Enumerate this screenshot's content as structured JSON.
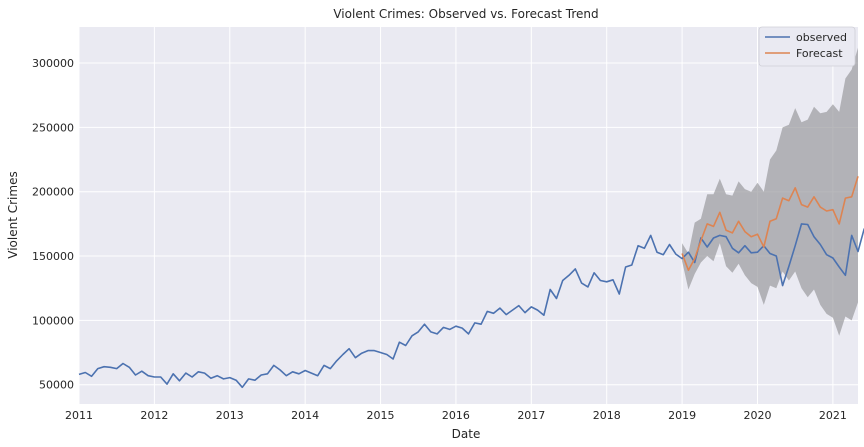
{
  "chart_data": {
    "type": "line",
    "title": "Violent Crimes: Observed vs. Forecast Trend",
    "xlabel": "Date",
    "ylabel": "Violent Crimes",
    "xlim": [
      "2011-01",
      "2021-05"
    ],
    "ylim": [
      35000,
      328000
    ],
    "grid": true,
    "legend_position": "top-right",
    "colors": {
      "observed": "#4c72b0",
      "forecast": "#dd8452",
      "band": "#9a9a9e",
      "background": "#eaeaf2",
      "grid": "#ffffff"
    },
    "x_ticks": [
      "2011",
      "2012",
      "2013",
      "2014",
      "2015",
      "2016",
      "2017",
      "2018",
      "2019",
      "2020",
      "2021"
    ],
    "y_ticks": [
      50000,
      100000,
      150000,
      200000,
      250000,
      300000
    ],
    "y_tick_labels": [
      "50000",
      "100000",
      "150000",
      "200000",
      "250000",
      "300000"
    ],
    "series": [
      {
        "name": "observed",
        "start": "2011-01",
        "values": [
          58000,
          59500,
          56500,
          62500,
          64000,
          63500,
          62500,
          66500,
          63500,
          57500,
          60500,
          57000,
          56000,
          56000,
          50500,
          58500,
          53000,
          59000,
          56000,
          60000,
          59000,
          55000,
          57000,
          54500,
          55500,
          53500,
          48000,
          54500,
          53500,
          57500,
          58500,
          65000,
          61500,
          57000,
          60000,
          58500,
          61000,
          59000,
          57000,
          65000,
          62500,
          68500,
          73500,
          78000,
          71000,
          74500,
          76500,
          76500,
          75000,
          73500,
          70000,
          83000,
          80500,
          88000,
          91000,
          97000,
          91000,
          89500,
          94500,
          93000,
          95500,
          94000,
          89500,
          98000,
          97000,
          107000,
          105500,
          109500,
          104500,
          108000,
          111500,
          106000,
          110500,
          108000,
          104000,
          124000,
          117000,
          131000,
          135000,
          140000,
          129000,
          126000,
          137000,
          131000,
          130000,
          131500,
          120500,
          141500,
          143000,
          158000,
          156000,
          166000,
          153000,
          151000,
          159000,
          151500,
          148000,
          153000,
          145000,
          164000,
          157000,
          164000,
          166000,
          165000,
          156000,
          152500,
          158000,
          152500,
          153000,
          158000,
          152000,
          150000,
          127000,
          142000,
          158000,
          175000,
          174500,
          165000,
          159000,
          151000,
          148500,
          141500,
          135000,
          166000,
          153500,
          171500
        ]
      },
      {
        "name": "Forecast",
        "start": "2019-01",
        "values": [
          152000,
          139000,
          148000,
          162000,
          175000,
          173000,
          184000,
          170000,
          168000,
          177000,
          169000,
          165000,
          167000,
          157000,
          177000,
          179000,
          195000,
          193000,
          203000,
          190000,
          188000,
          196000,
          188000,
          185000,
          186000,
          175000,
          195000,
          196000,
          212000
        ],
        "lower": [
          146000,
          124000,
          136000,
          145000,
          150000,
          146000,
          160000,
          142000,
          137000,
          144000,
          135000,
          129000,
          126000,
          112000,
          127000,
          125000,
          138000,
          131000,
          138000,
          125000,
          118000,
          124000,
          112000,
          105000,
          102000,
          88000,
          103000,
          100000,
          114000
        ],
        "upper": [
          160000,
          152000,
          176000,
          179000,
          198000,
          198000,
          210000,
          198000,
          197000,
          208000,
          202000,
          200000,
          207000,
          200000,
          225000,
          232000,
          250000,
          252000,
          265000,
          254000,
          256000,
          266000,
          261000,
          262000,
          268000,
          262000,
          288000,
          295000,
          312000
        ]
      }
    ]
  }
}
